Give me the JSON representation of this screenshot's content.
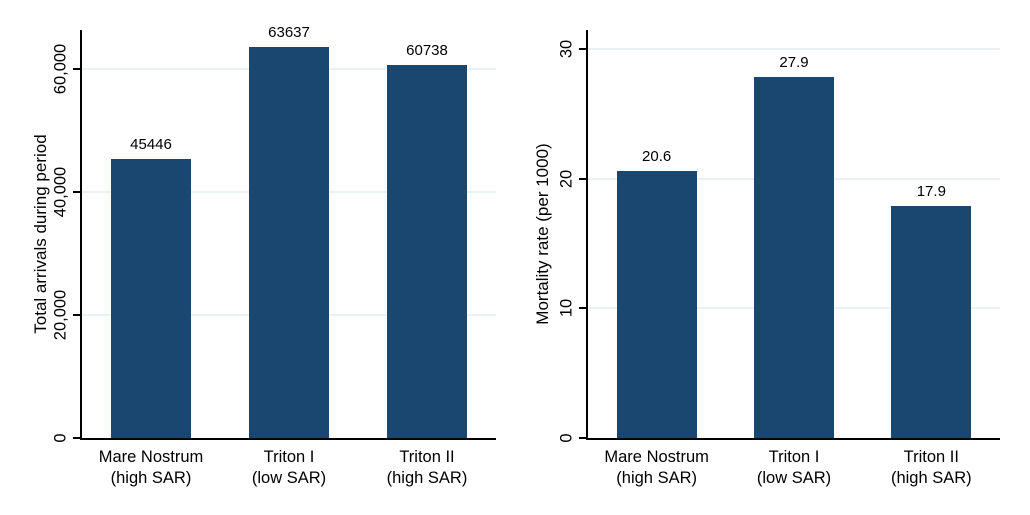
{
  "figure": {
    "background_color": "#ffffff",
    "bar_color": "#1a476f",
    "grid_color": "#eaf2f3",
    "axis_color": "#000000"
  },
  "chart_data": [
    {
      "type": "bar",
      "title": "",
      "xlabel": "",
      "ylabel": "Total arrivals during period",
      "categories": [
        "Mare Nostrum\n(high SAR)",
        "Triton I\n(low SAR)",
        "Triton II\n(high SAR)"
      ],
      "values": [
        45446,
        63637,
        60738
      ],
      "value_labels": [
        "45446",
        "63637",
        "60738"
      ],
      "ylim": [
        0,
        66400
      ],
      "yticks": [
        {
          "value": 0,
          "label": "0"
        },
        {
          "value": 20000,
          "label": "20,000"
        },
        {
          "value": 40000,
          "label": "40,000"
        },
        {
          "value": 60000,
          "label": "60,000"
        }
      ],
      "grid": true,
      "legend": "none",
      "bar_color": "#1a476f"
    },
    {
      "type": "bar",
      "title": "",
      "xlabel": "",
      "ylabel": "Mortality rate (per 1000)",
      "categories": [
        "Mare Nostrum\n(high SAR)",
        "Triton I\n(low SAR)",
        "Triton II\n(high SAR)"
      ],
      "values": [
        20.6,
        27.9,
        17.9
      ],
      "value_labels": [
        "20.6",
        "27.9",
        "17.9"
      ],
      "ylim": [
        0,
        31.5
      ],
      "yticks": [
        {
          "value": 0,
          "label": "0"
        },
        {
          "value": 10,
          "label": "10"
        },
        {
          "value": 20,
          "label": "20"
        },
        {
          "value": 30,
          "label": "30"
        }
      ],
      "grid": true,
      "legend": "none",
      "bar_color": "#1a476f"
    }
  ]
}
